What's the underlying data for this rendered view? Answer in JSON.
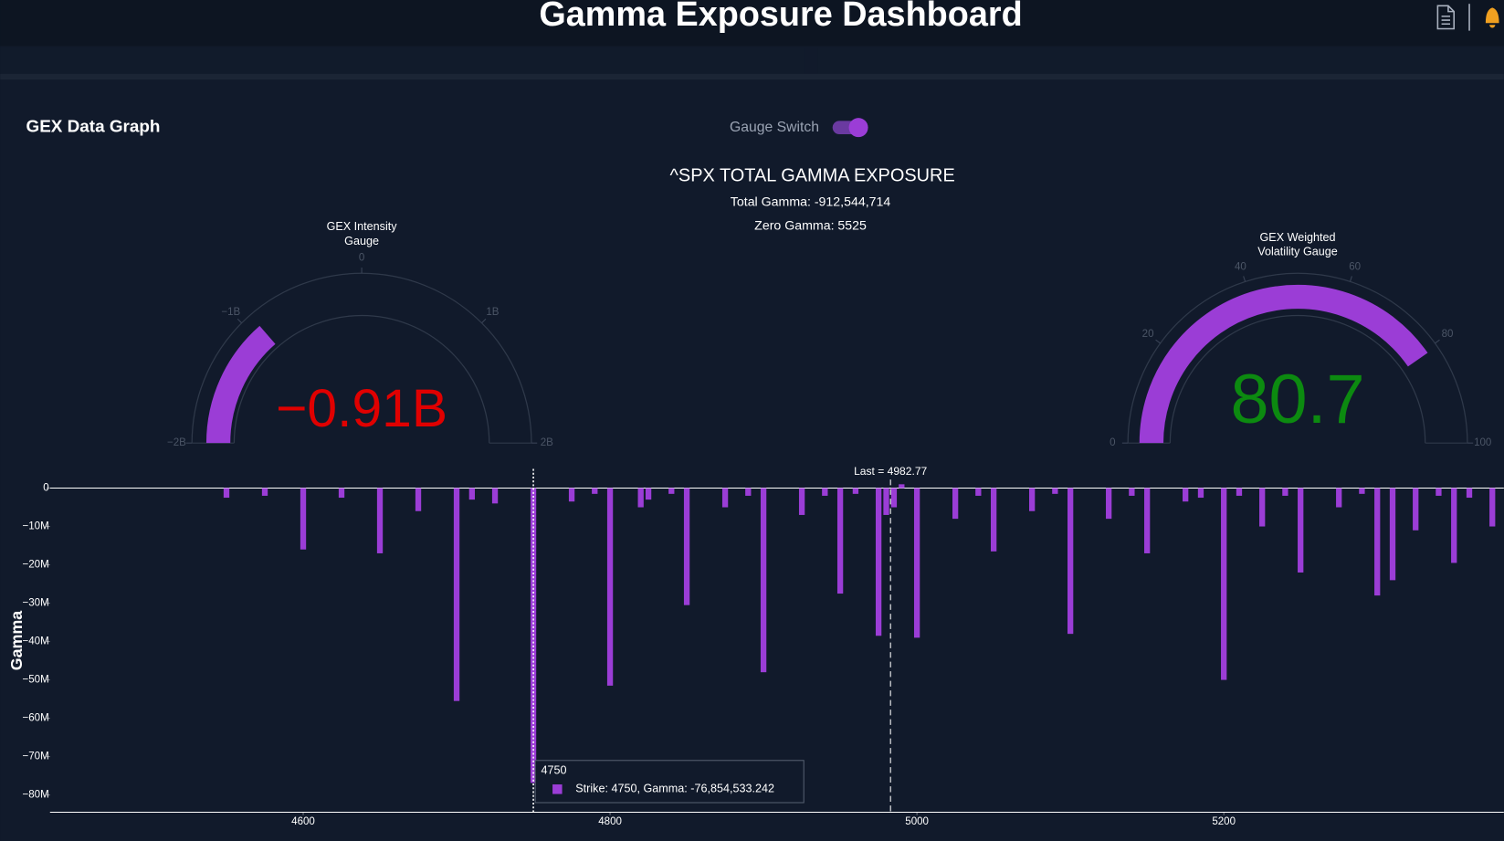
{
  "header": {
    "title": "Gamma Exposure Dashboard"
  },
  "panel": {
    "title": "GEX Data Graph",
    "switch_label": "Gauge Switch"
  },
  "chart_data": [
    {
      "type": "gauge",
      "title": [
        "GEX Intensity",
        "Gauge"
      ],
      "value": -912544714,
      "value_label": "−0.91B",
      "color": "#9b3dd6",
      "value_color": "#e00000",
      "range": [
        -2000000000,
        2000000000
      ],
      "ticks": [
        {
          "value": -2000000000,
          "label": "−2B"
        },
        {
          "value": -1000000000,
          "label": "−1B"
        },
        0,
        {
          "value": 1000000000,
          "label": "1B"
        },
        {
          "value": 2000000000,
          "label": "2B"
        }
      ]
    },
    {
      "type": "gauge",
      "title": [
        "GEX Weighted",
        "Volatility Gauge"
      ],
      "value": 80.7,
      "color": "#9b3dd6",
      "value_color": "#0c8a10",
      "range": [
        0,
        100
      ],
      "ticks": [
        0,
        20,
        40,
        60,
        80,
        100
      ]
    },
    {
      "type": "bar",
      "title": "^SPX TOTAL GAMMA EXPOSURE",
      "subtitle": [
        "Total Gamma: -912,544,714",
        "Zero Gamma: 5525"
      ],
      "ylabel": "Gamma",
      "color": "#9b3dd6",
      "x": [
        4550,
        4575,
        4600,
        4625,
        4650,
        4675,
        4700,
        4710,
        4725,
        4750,
        4775,
        4790,
        4800,
        4820,
        4825,
        4840,
        4850,
        4875,
        4890,
        4900,
        4925,
        4940,
        4950,
        4960,
        4975,
        4980,
        4985,
        4990,
        5000,
        5025,
        5040,
        5050,
        5075,
        5090,
        5100,
        5125,
        5140,
        5150,
        5175,
        5185,
        5200,
        5210,
        5225,
        5240,
        5250,
        5275,
        5290,
        5300,
        5310,
        5325,
        5340,
        5350,
        5360,
        5375
      ],
      "values": [
        -2500000,
        -2000000,
        -16000000,
        -2500000,
        -17000000,
        -6000000,
        -55500000,
        -3000000,
        -4000000,
        -76854533.242,
        -3500000,
        -1500000,
        -51500000,
        -5000000,
        -3000000,
        -1500000,
        -30500000,
        -5000000,
        -2000000,
        -48000000,
        -7000000,
        -2000000,
        -27500000,
        -1500000,
        -38500000,
        -7000000,
        -5000000,
        1000000,
        -39000000,
        -8000000,
        -2000000,
        -16500000,
        -6000000,
        -1500000,
        -38000000,
        -8000000,
        -2000000,
        -17000000,
        -3500000,
        -2500000,
        -50000000,
        -2000000,
        -10000000,
        -2000000,
        -22000000,
        -5000000,
        -1500000,
        -28000000,
        -24000000,
        -11000000,
        -2000000,
        -19500000,
        -2500000,
        -10000000
      ],
      "xlim": [
        4435,
        5382.5
      ],
      "ylim": [
        -84500000,
        5000000
      ],
      "xticks": [
        4600,
        4800,
        5000,
        5200
      ],
      "yticks": [
        0,
        {
          "value": -10000000,
          "label": "−10M"
        },
        {
          "value": -20000000,
          "label": "−20M"
        },
        {
          "value": -30000000,
          "label": "−30M"
        },
        {
          "value": -40000000,
          "label": "−40M"
        },
        {
          "value": -50000000,
          "label": "−50M"
        },
        {
          "value": -60000000,
          "label": "−60M"
        },
        {
          "value": -70000000,
          "label": "−70M"
        },
        {
          "value": -80000000,
          "label": "−80M"
        }
      ],
      "annotations": [
        {
          "text": "Last = 4982.77",
          "x": 4982.77
        }
      ],
      "tooltip": {
        "title": "4750",
        "text": "Strike: 4750, Gamma: -76,854,533.242",
        "x": 4750
      }
    }
  ]
}
